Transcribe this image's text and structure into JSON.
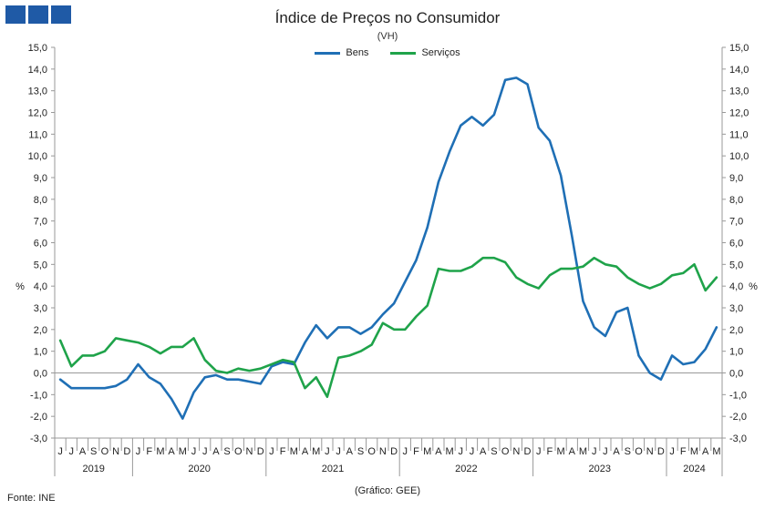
{
  "header": {
    "title": "Índice de Preços no Consumidor",
    "subtitle": "(VH)"
  },
  "footer": {
    "source": "Fonte: INE",
    "credit": "(Gráfico: GEE)"
  },
  "colors": {
    "logo": "#1f5aa6",
    "bens": "#1f6fb5",
    "servicos": "#1fa34a"
  },
  "chart_data": {
    "type": "line",
    "title": "Índice de Preços no Consumidor",
    "subtitle": "(VH)",
    "ylabel_left": "%",
    "ylabel_right": "%",
    "ylim": [
      -3.0,
      15.0
    ],
    "yticks": [
      "15,0",
      "14,0",
      "13,0",
      "12,0",
      "11,0",
      "10,0",
      "9,0",
      "8,0",
      "7,0",
      "6,0",
      "5,0",
      "4,0",
      "3,0",
      "2,0",
      "1,0",
      "0,0",
      "-1,0",
      "-2,0",
      "-3,0"
    ],
    "legend_position": "top-center",
    "grid": false,
    "months": [
      "J",
      "J",
      "A",
      "S",
      "O",
      "N",
      "D",
      "J",
      "F",
      "M",
      "A",
      "M",
      "J",
      "J",
      "A",
      "S",
      "O",
      "N",
      "D",
      "J",
      "F",
      "M",
      "A",
      "M",
      "J",
      "J",
      "A",
      "S",
      "O",
      "N",
      "D",
      "J",
      "F",
      "M",
      "A",
      "M",
      "J",
      "J",
      "A",
      "S",
      "O",
      "N",
      "D",
      "J",
      "F",
      "M",
      "A",
      "M",
      "J",
      "J",
      "A",
      "S",
      "O",
      "N",
      "D",
      "J",
      "F",
      "M",
      "A",
      "M"
    ],
    "years": [
      {
        "label": "2019",
        "start": 0,
        "end": 6
      },
      {
        "label": "2020",
        "start": 7,
        "end": 18
      },
      {
        "label": "2021",
        "start": 19,
        "end": 30
      },
      {
        "label": "2022",
        "start": 31,
        "end": 42
      },
      {
        "label": "2023",
        "start": 43,
        "end": 54
      },
      {
        "label": "2024",
        "start": 55,
        "end": 59
      }
    ],
    "series": [
      {
        "name": "Bens",
        "color": "#1f6fb5",
        "values": [
          -0.3,
          -0.7,
          -0.7,
          -0.7,
          -0.7,
          -0.6,
          -0.3,
          0.4,
          -0.2,
          -0.5,
          -1.2,
          -2.1,
          -0.9,
          -0.2,
          -0.1,
          -0.3,
          -0.3,
          -0.4,
          -0.5,
          0.3,
          0.5,
          0.4,
          1.4,
          2.2,
          1.6,
          2.1,
          2.1,
          1.8,
          2.1,
          2.7,
          3.2,
          4.2,
          5.2,
          6.7,
          8.8,
          10.2,
          11.4,
          11.8,
          11.4,
          11.9,
          13.5,
          13.6,
          13.3,
          11.3,
          10.7,
          9.1,
          6.3,
          3.3,
          2.1,
          1.7,
          2.8,
          3.0,
          0.8,
          0.0,
          -0.3,
          0.8,
          0.4,
          0.5,
          1.1,
          2.1
        ]
      },
      {
        "name": "Serviços",
        "color": "#1fa34a",
        "values": [
          1.5,
          0.3,
          0.8,
          0.8,
          1.0,
          1.6,
          1.5,
          1.4,
          1.2,
          0.9,
          1.2,
          1.2,
          1.6,
          0.6,
          0.1,
          0.0,
          0.2,
          0.1,
          0.2,
          0.4,
          0.6,
          0.5,
          -0.7,
          -0.2,
          -1.1,
          0.7,
          0.8,
          1.0,
          1.3,
          2.3,
          2.0,
          2.0,
          2.6,
          3.1,
          4.8,
          4.7,
          4.7,
          4.9,
          5.3,
          5.3,
          5.1,
          4.4,
          4.1,
          3.9,
          4.5,
          4.8,
          4.8,
          4.9,
          5.3,
          5.0,
          4.9,
          4.4,
          4.1,
          3.9,
          4.1,
          4.5,
          4.6,
          5.0,
          3.8,
          4.4
        ]
      }
    ]
  }
}
